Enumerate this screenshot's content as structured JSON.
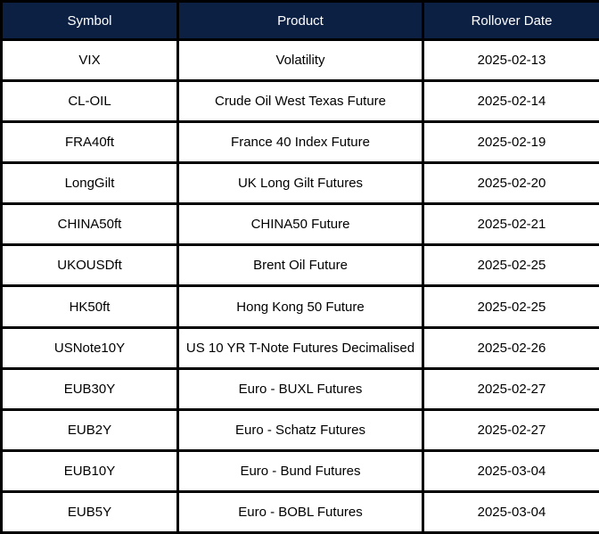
{
  "table": {
    "columns": [
      {
        "key": "symbol",
        "label": "Symbol"
      },
      {
        "key": "product",
        "label": "Product"
      },
      {
        "key": "rollover_date",
        "label": "Rollover Date"
      }
    ],
    "rows": [
      {
        "symbol": "VIX",
        "product": "Volatility",
        "rollover_date": "2025-02-13"
      },
      {
        "symbol": "CL-OIL",
        "product": "Crude Oil West Texas Future",
        "rollover_date": "2025-02-14"
      },
      {
        "symbol": "FRA40ft",
        "product": "France 40 Index Future",
        "rollover_date": "2025-02-19"
      },
      {
        "symbol": "LongGilt",
        "product": "UK Long Gilt Futures",
        "rollover_date": "2025-02-20"
      },
      {
        "symbol": "CHINA50ft",
        "product": "CHINA50 Future",
        "rollover_date": "2025-02-21"
      },
      {
        "symbol": "UKOUSDft",
        "product": "Brent Oil Future",
        "rollover_date": "2025-02-25"
      },
      {
        "symbol": "HK50ft",
        "product": "Hong Kong 50 Future",
        "rollover_date": "2025-02-25"
      },
      {
        "symbol": "USNote10Y",
        "product": "US 10 YR T-Note Futures Decimalised",
        "rollover_date": "2025-02-26"
      },
      {
        "symbol": "EUB30Y",
        "product": "Euro - BUXL Futures",
        "rollover_date": "2025-02-27"
      },
      {
        "symbol": "EUB2Y",
        "product": "Euro - Schatz Futures",
        "rollover_date": "2025-02-27"
      },
      {
        "symbol": "EUB10Y",
        "product": "Euro - Bund Futures",
        "rollover_date": "2025-03-04"
      },
      {
        "symbol": "EUB5Y",
        "product": "Euro - BOBL Futures",
        "rollover_date": "2025-03-04"
      }
    ]
  },
  "colors": {
    "header_bg": "#0c2044",
    "header_text": "#ffffff",
    "border": "#000000",
    "row_bg": "#ffffff",
    "row_text": "#000000"
  }
}
